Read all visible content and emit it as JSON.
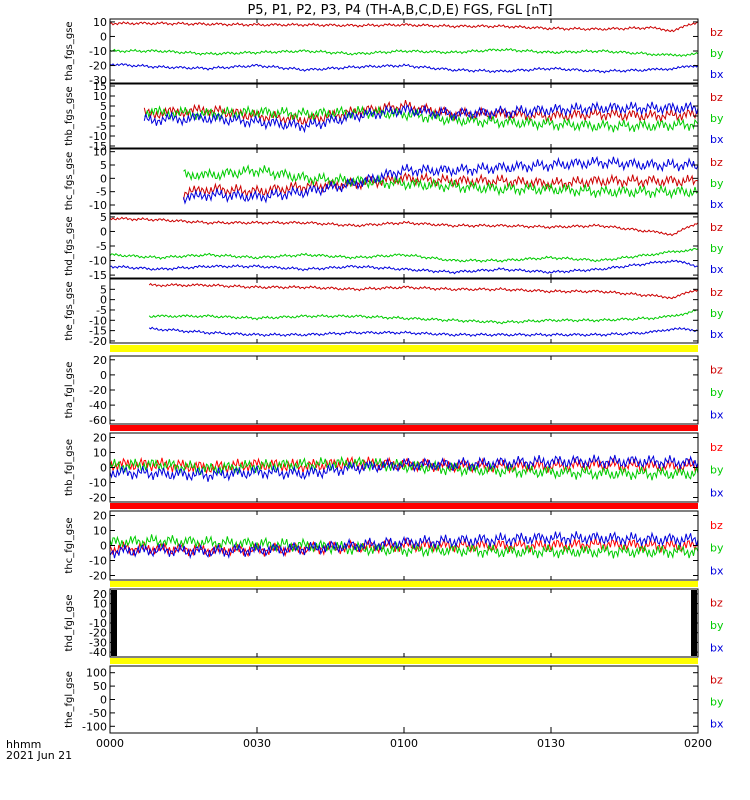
{
  "title": "P5, P1, P2, P3, P4 (TH-A,B,C,D,E) FGS, FGL [nT]",
  "x_axis": {
    "ticks": [
      "0000",
      "0030",
      "0100",
      "0130",
      "0200"
    ],
    "tick_minutes": [
      0,
      30,
      60,
      90,
      120
    ],
    "range_minutes": [
      0,
      120
    ],
    "corner_label_1": "hhmm",
    "corner_label_2": "2021 Jun 21"
  },
  "colors": {
    "bz": "#cc0000",
    "by": "#00cc00",
    "bx": "#0000dd",
    "bar_yellow": "#ffff00",
    "bar_red": "#ff0000",
    "bar_black": "#000000"
  },
  "chart_data": [
    {
      "type": "line",
      "ylabel": "tha_fgs_gse",
      "ylim": [
        -32,
        12
      ],
      "ticks": [
        10,
        0,
        -10,
        -20,
        -30
      ],
      "grid": false,
      "legend_placement": "right",
      "series": [
        {
          "name": "bz",
          "color": "#cc0000",
          "x": [
            0,
            10,
            20,
            30,
            40,
            50,
            60,
            70,
            80,
            90,
            100,
            110,
            115,
            120
          ],
          "y": [
            9,
            9,
            8.5,
            8,
            8,
            7.5,
            8,
            7,
            7,
            5.5,
            5,
            6,
            4,
            10
          ]
        },
        {
          "name": "by",
          "color": "#00cc00",
          "x": [
            0,
            10,
            20,
            30,
            40,
            50,
            60,
            70,
            80,
            90,
            100,
            110,
            115,
            120
          ],
          "y": [
            -10,
            -10,
            -12,
            -11,
            -10,
            -12,
            -10,
            -11,
            -9,
            -11,
            -10,
            -12,
            -13,
            -12
          ]
        },
        {
          "name": "bx",
          "color": "#0000dd",
          "x": [
            0,
            10,
            20,
            30,
            40,
            50,
            60,
            70,
            80,
            90,
            100,
            110,
            115,
            120
          ],
          "y": [
            -19,
            -21,
            -22,
            -20,
            -23,
            -21,
            -20,
            -23,
            -24,
            -22,
            -24,
            -23,
            -22,
            -20
          ]
        }
      ]
    },
    {
      "type": "line",
      "ylabel": "thb_fgs_gse",
      "ylim": [
        -16,
        16
      ],
      "ticks": [
        15,
        10,
        5,
        0,
        -5,
        -10,
        -15
      ],
      "grid": false,
      "legend_placement": "right",
      "series": [
        {
          "name": "bz",
          "color": "#cc0000",
          "x": [
            7,
            20,
            30,
            40,
            50,
            60,
            70,
            80,
            90,
            100,
            110,
            120
          ],
          "y": [
            1,
            3,
            0,
            -2,
            2,
            5,
            1,
            1,
            0,
            1,
            0,
            1
          ]
        },
        {
          "name": "by",
          "color": "#00cc00",
          "x": [
            7,
            20,
            30,
            40,
            50,
            60,
            70,
            80,
            90,
            100,
            110,
            120
          ],
          "y": [
            2,
            1,
            2,
            1,
            2,
            1,
            -2,
            -3,
            -4,
            -5,
            -5,
            -4
          ]
        },
        {
          "name": "bx",
          "color": "#0000dd",
          "x": [
            7,
            20,
            30,
            40,
            50,
            60,
            70,
            80,
            90,
            100,
            110,
            120
          ],
          "y": [
            -2,
            -1,
            -3,
            -5,
            0,
            3,
            1,
            2,
            3,
            4,
            4,
            4
          ]
        }
      ]
    },
    {
      "type": "line",
      "ylabel": "thc_fgs_gse",
      "ylim": [
        -13,
        11
      ],
      "ticks": [
        10,
        5,
        0,
        -5,
        -10
      ],
      "grid": false,
      "legend_placement": "right",
      "series": [
        {
          "name": "bz",
          "color": "#cc0000",
          "x": [
            15,
            20,
            30,
            40,
            50,
            60,
            70,
            80,
            90,
            100,
            110,
            120
          ],
          "y": [
            -6,
            -4,
            -5,
            -3,
            -2,
            0,
            -1,
            -1,
            -2,
            -1,
            -1,
            -1
          ]
        },
        {
          "name": "by",
          "color": "#00cc00",
          "x": [
            15,
            20,
            30,
            40,
            50,
            60,
            70,
            80,
            90,
            100,
            110,
            120
          ],
          "y": [
            2,
            1,
            3,
            0,
            -1,
            -2,
            -3,
            -4,
            -4,
            -5,
            -5,
            -5
          ]
        },
        {
          "name": "bx",
          "color": "#0000dd",
          "x": [
            15,
            20,
            30,
            40,
            50,
            60,
            70,
            80,
            90,
            100,
            110,
            120
          ],
          "y": [
            -8,
            -6,
            -7,
            -5,
            -2,
            3,
            3,
            4,
            5,
            6,
            5,
            5
          ]
        }
      ]
    },
    {
      "type": "line",
      "ylabel": "thd_fgs_gse",
      "ylim": [
        -16,
        6
      ],
      "ticks": [
        5,
        0,
        -5,
        -10,
        -15
      ],
      "grid": false,
      "legend_placement": "right",
      "series": [
        {
          "name": "bz",
          "color": "#cc0000",
          "x": [
            0,
            10,
            20,
            30,
            40,
            50,
            60,
            70,
            80,
            90,
            100,
            110,
            115,
            120
          ],
          "y": [
            4.5,
            4,
            3,
            3,
            3,
            2,
            3,
            2,
            2,
            1.5,
            2,
            0,
            -1,
            3
          ]
        },
        {
          "name": "by",
          "color": "#00cc00",
          "x": [
            0,
            10,
            20,
            30,
            40,
            50,
            60,
            70,
            80,
            90,
            100,
            110,
            115,
            120
          ],
          "y": [
            -8,
            -9,
            -8,
            -9,
            -8,
            -9,
            -8,
            -10,
            -10,
            -9,
            -10,
            -8,
            -7,
            -6
          ]
        },
        {
          "name": "bx",
          "color": "#0000dd",
          "x": [
            0,
            10,
            20,
            30,
            40,
            50,
            60,
            70,
            80,
            90,
            100,
            110,
            115,
            120
          ],
          "y": [
            -12,
            -13,
            -12,
            -12,
            -13,
            -12,
            -13,
            -14,
            -13,
            -14,
            -13,
            -11,
            -10,
            -12
          ]
        }
      ]
    },
    {
      "type": "line",
      "ylabel": "the_fgs_gse",
      "ylim": [
        -21,
        10
      ],
      "ticks": [
        5,
        0,
        -5,
        -10,
        -15,
        -20
      ],
      "grid": false,
      "legend_placement": "right",
      "series": [
        {
          "name": "bz",
          "color": "#cc0000",
          "x": [
            8,
            20,
            30,
            40,
            50,
            60,
            70,
            80,
            90,
            100,
            110,
            115,
            120
          ],
          "y": [
            7,
            7,
            6,
            6,
            5,
            6,
            5,
            5,
            4,
            4,
            2,
            1,
            5
          ]
        },
        {
          "name": "by",
          "color": "#00cc00",
          "x": [
            8,
            20,
            30,
            40,
            50,
            60,
            70,
            80,
            90,
            100,
            110,
            115,
            120
          ],
          "y": [
            -8,
            -8,
            -9,
            -8,
            -8,
            -9,
            -10,
            -11,
            -10,
            -10,
            -9,
            -8,
            -5
          ]
        },
        {
          "name": "bx",
          "color": "#0000dd",
          "x": [
            8,
            20,
            30,
            40,
            50,
            60,
            70,
            80,
            90,
            100,
            110,
            115,
            120
          ],
          "y": [
            -14,
            -16,
            -17,
            -17,
            -16,
            -16,
            -17,
            -17,
            -17,
            -17,
            -16,
            -14,
            -15
          ]
        }
      ]
    },
    {
      "type": "line",
      "ylabel": "tha_fgl_gse",
      "ylim": [
        -65,
        25
      ],
      "ticks": [
        20,
        0,
        -20,
        -40,
        -60
      ],
      "grid": false,
      "legend_placement": "right",
      "series": [
        {
          "name": "bz",
          "color": "#cc0000",
          "x": [],
          "y": []
        },
        {
          "name": "by",
          "color": "#00cc00",
          "x": [],
          "y": []
        },
        {
          "name": "bx",
          "color": "#0000dd",
          "x": [],
          "y": []
        }
      ]
    },
    {
      "type": "line",
      "ylabel": "thb_fgl_gse",
      "ylim": [
        -23,
        23
      ],
      "ticks": [
        20,
        10,
        0,
        -10,
        -20
      ],
      "grid": false,
      "legend_placement": "right",
      "series": [
        {
          "name": "bz",
          "color": "#ff0000",
          "x": [
            0,
            10,
            20,
            30,
            40,
            50,
            60,
            70,
            80,
            90,
            100,
            110,
            120
          ],
          "y": [
            2,
            2,
            0,
            2,
            1,
            3,
            2,
            1,
            1,
            1,
            2,
            1,
            1
          ]
        },
        {
          "name": "by",
          "color": "#00cc00",
          "x": [
            0,
            10,
            20,
            30,
            40,
            50,
            60,
            70,
            80,
            90,
            100,
            110,
            120
          ],
          "y": [
            1,
            2,
            -1,
            1,
            2,
            3,
            1,
            -1,
            -2,
            -3,
            -4,
            -4,
            -4
          ]
        },
        {
          "name": "bx",
          "color": "#0000dd",
          "x": [
            0,
            10,
            20,
            30,
            40,
            50,
            60,
            70,
            80,
            90,
            100,
            110,
            120
          ],
          "y": [
            -3,
            -4,
            -5,
            -3,
            -4,
            0,
            2,
            2,
            3,
            4,
            4,
            4,
            3
          ]
        }
      ]
    },
    {
      "type": "line",
      "ylabel": "thc_fgl_gse",
      "ylim": [
        -23,
        23
      ],
      "ticks": [
        20,
        10,
        0,
        -10,
        -20
      ],
      "grid": false,
      "legend_placement": "right",
      "series": [
        {
          "name": "bz",
          "color": "#ff0000",
          "x": [
            0,
            10,
            20,
            30,
            40,
            50,
            60,
            70,
            80,
            90,
            100,
            110,
            120
          ],
          "y": [
            -2,
            -2,
            -3,
            -3,
            -2,
            -1,
            0,
            0,
            0,
            0,
            1,
            0,
            0
          ]
        },
        {
          "name": "by",
          "color": "#00cc00",
          "x": [
            0,
            10,
            20,
            30,
            40,
            50,
            60,
            70,
            80,
            90,
            100,
            110,
            120
          ],
          "y": [
            2,
            3,
            2,
            1,
            0,
            -2,
            -3,
            -3,
            -4,
            -4,
            -4,
            -4,
            -4
          ]
        },
        {
          "name": "bx",
          "color": "#0000dd",
          "x": [
            0,
            10,
            20,
            30,
            40,
            50,
            60,
            70,
            80,
            90,
            100,
            110,
            120
          ],
          "y": [
            -4,
            -3,
            -4,
            -3,
            -2,
            0,
            2,
            3,
            4,
            5,
            5,
            4,
            4
          ]
        }
      ]
    },
    {
      "type": "line",
      "ylabel": "thd_fgl_gse",
      "ylim": [
        -45,
        25
      ],
      "ticks": [
        20,
        10,
        0,
        -10,
        -20,
        -30,
        -40
      ],
      "grid": false,
      "legend_placement": "right",
      "series": [
        {
          "name": "bz",
          "color": "#cc0000",
          "x": [],
          "y": []
        },
        {
          "name": "by",
          "color": "#00cc00",
          "x": [],
          "y": []
        },
        {
          "name": "bx",
          "color": "#0000dd",
          "x": [],
          "y": []
        }
      ]
    },
    {
      "type": "line",
      "ylabel": "the_fgl_gse",
      "ylim": [
        -125,
        125
      ],
      "ticks": [
        100,
        50,
        0,
        -50,
        -100
      ],
      "grid": false,
      "legend_placement": "right",
      "series": [
        {
          "name": "bz",
          "color": "#cc0000",
          "x": [],
          "y": []
        },
        {
          "name": "by",
          "color": "#00cc00",
          "x": [],
          "y": []
        },
        {
          "name": "bx",
          "color": "#0000dd",
          "x": [],
          "y": []
        }
      ]
    }
  ]
}
